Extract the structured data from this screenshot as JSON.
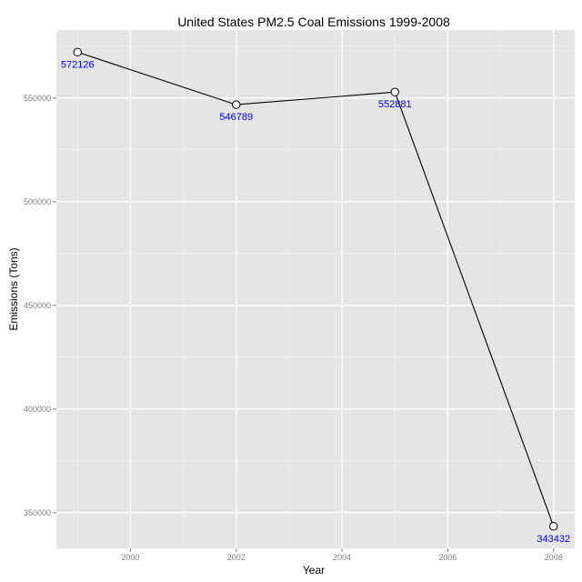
{
  "chart_data": {
    "type": "line",
    "title": "United States PM2.5 Coal Emissions 1999-2008",
    "xlabel": "Year",
    "ylabel": "Emissions (Tons)",
    "x": [
      1999,
      2002,
      2005,
      2008
    ],
    "values": [
      572126,
      546789,
      552881,
      343432
    ],
    "data_labels": [
      "572126",
      "546789",
      "552881",
      "343432"
    ],
    "xlim": [
      1998.6,
      2008.4
    ],
    "ylim": [
      332800,
      582800
    ],
    "x_ticks": [
      2000,
      2002,
      2004,
      2006,
      2008
    ],
    "x_tick_labels": [
      "2000",
      "2002",
      "2004",
      "2006",
      "2008"
    ],
    "y_ticks": [
      350000,
      400000,
      450000,
      500000,
      550000
    ],
    "y_tick_labels": [
      "350000",
      "400000",
      "450000",
      "500000",
      "550000"
    ],
    "grid": true,
    "colors": {
      "panel": "#e5e5e5",
      "grid_major": "#ffffff",
      "grid_minor": "#f2f2f2",
      "line": "#000000",
      "point_fill": "#ffffff",
      "data_label": "#0000ff",
      "tick": "#7f7f7f"
    }
  }
}
